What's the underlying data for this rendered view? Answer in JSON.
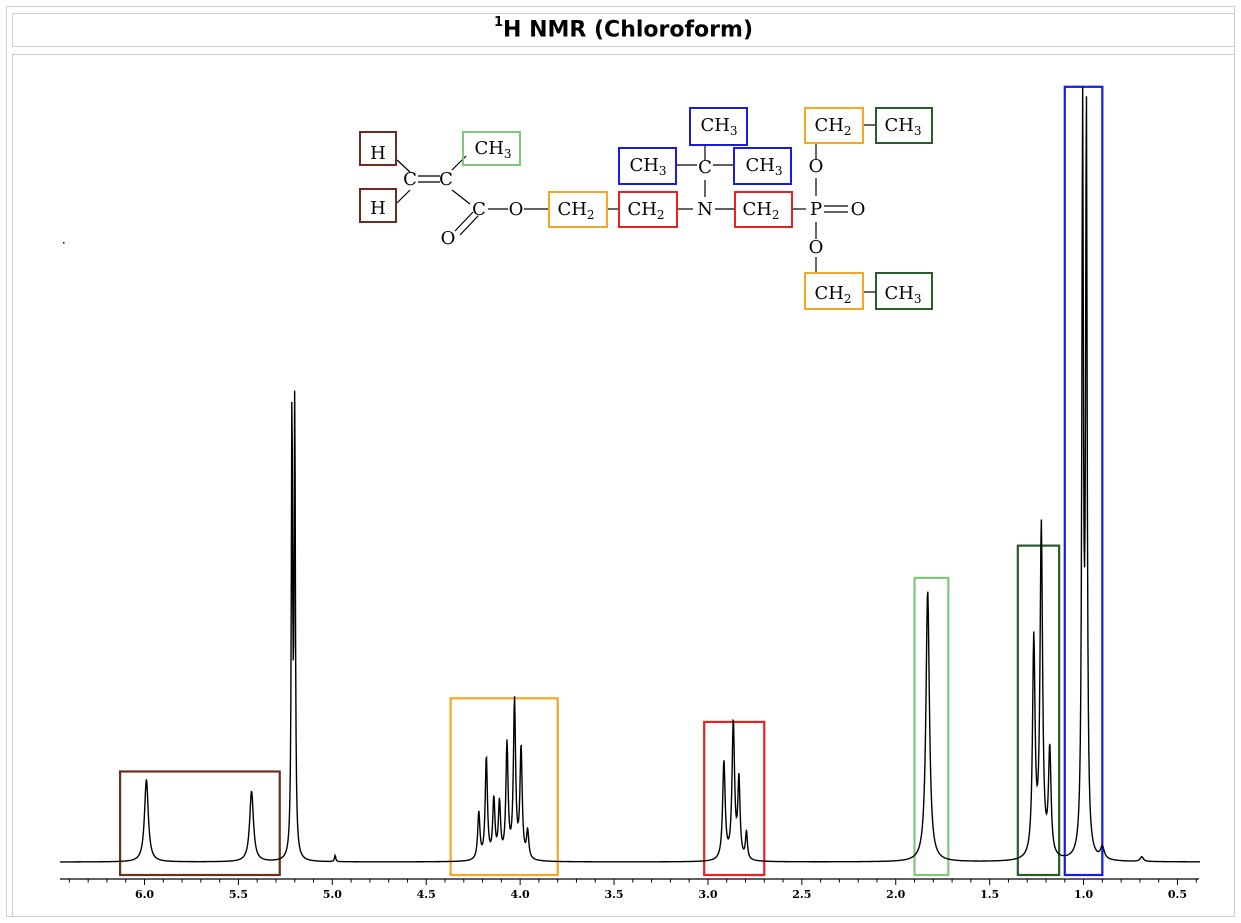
{
  "header": {
    "title_sup": "1",
    "title_main": "H NMR (Chloroform)"
  },
  "colors": {
    "vinyl": "#6b2d20",
    "methyl_ester": "#7fc87a",
    "och2": "#f5a623",
    "nch2": "#e82020",
    "tbutyl": "#1a1ae6",
    "ethyl_ch3": "#2d5a2d",
    "spectrum": "#000000"
  },
  "chart_data": {
    "type": "line",
    "title": "1H NMR (Chloroform)",
    "xlabel": "",
    "ylabel": "",
    "x_reversed": true,
    "xlim": [
      6.45,
      0.38
    ],
    "ylim": [
      0,
      100
    ],
    "x_tick_labels": [
      "6.0",
      "5.5",
      "5.0",
      "4.5",
      "4.0",
      "3.5",
      "3.0",
      "2.5",
      "2.0",
      "1.5",
      "1.0",
      "0.5"
    ],
    "x_ticks": [
      6.0,
      5.5,
      5.0,
      4.5,
      4.0,
      3.5,
      3.0,
      2.5,
      2.0,
      1.5,
      1.0,
      0.5
    ],
    "peaks": [
      {
        "ppm": 5.99,
        "height": 10.5,
        "width": 0.012
      },
      {
        "ppm": 5.43,
        "height": 9.0,
        "width": 0.012
      },
      {
        "ppm": 5.215,
        "height": 57.0,
        "width": 0.004
      },
      {
        "ppm": 5.2,
        "height": 57.0,
        "width": 0.004
      },
      {
        "ppm": 4.985,
        "height": 0.8,
        "width": 0.004
      },
      {
        "ppm": 4.22,
        "height": 6.0,
        "width": 0.007
      },
      {
        "ppm": 4.18,
        "height": 13.0,
        "width": 0.007
      },
      {
        "ppm": 4.14,
        "height": 7.5,
        "width": 0.007
      },
      {
        "ppm": 4.11,
        "height": 7.0,
        "width": 0.007
      },
      {
        "ppm": 4.07,
        "height": 14.5,
        "width": 0.007
      },
      {
        "ppm": 4.03,
        "height": 20.0,
        "width": 0.007
      },
      {
        "ppm": 3.995,
        "height": 14.0,
        "width": 0.007
      },
      {
        "ppm": 3.96,
        "height": 3.5,
        "width": 0.007
      },
      {
        "ppm": 2.915,
        "height": 12.5,
        "width": 0.008
      },
      {
        "ppm": 2.865,
        "height": 17.5,
        "width": 0.008
      },
      {
        "ppm": 2.835,
        "height": 10.0,
        "width": 0.007
      },
      {
        "ppm": 2.795,
        "height": 3.5,
        "width": 0.006
      },
      {
        "ppm": 1.83,
        "height": 34.5,
        "width": 0.011
      },
      {
        "ppm": 1.265,
        "height": 27.5,
        "width": 0.008
      },
      {
        "ppm": 1.225,
        "height": 42.0,
        "width": 0.008
      },
      {
        "ppm": 1.18,
        "height": 13.5,
        "width": 0.008
      },
      {
        "ppm": 1.005,
        "height": 93.0,
        "width": 0.005
      },
      {
        "ppm": 0.985,
        "height": 93.0,
        "width": 0.005
      },
      {
        "ppm": 0.9,
        "height": 1.5,
        "width": 0.012
      },
      {
        "ppm": 0.69,
        "height": 0.6,
        "width": 0.01
      }
    ],
    "assignment_boxes": [
      {
        "group": "vinyl",
        "x_from": 6.13,
        "x_to": 5.28,
        "y_top": 11.5
      },
      {
        "group": "och2",
        "x_from": 4.37,
        "x_to": 3.8,
        "y_top": 20.8
      },
      {
        "group": "nch2",
        "x_from": 3.02,
        "x_to": 2.7,
        "y_top": 17.8
      },
      {
        "group": "methyl_ester",
        "x_from": 1.9,
        "x_to": 1.72,
        "y_top": 36.1
      },
      {
        "group": "ethyl_ch3",
        "x_from": 1.35,
        "x_to": 1.13,
        "y_top": 40.2
      },
      {
        "group": "tbutyl",
        "x_from": 1.1,
        "x_to": 0.9,
        "y_top": 98.5
      }
    ]
  },
  "molecule": {
    "atoms": {
      "h": "H",
      "c": "C",
      "o": "O",
      "n": "N",
      "p": "P",
      "ch_prefix": "CH",
      "sub2": "2",
      "sub3": "3"
    }
  }
}
